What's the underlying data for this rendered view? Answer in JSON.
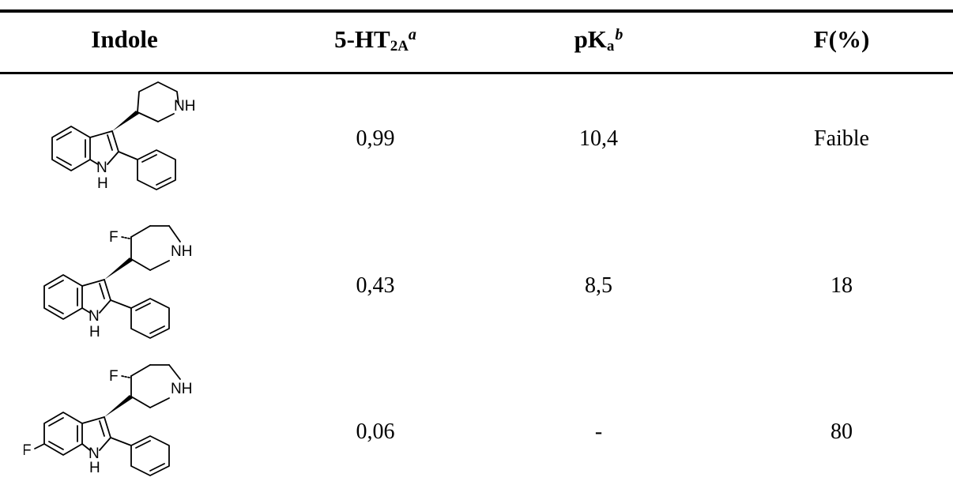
{
  "header": {
    "col1": "Indole",
    "col2_main": "5-HT",
    "col2_sub": "2A",
    "col2_sup": "a",
    "col3_main": "pK",
    "col3_sub": "a",
    "col3_sup": "b",
    "col4": "F(%)"
  },
  "rows": [
    {
      "structure_labels": {
        "amine": "NH",
        "indole_n": "N",
        "indole_h": "H"
      },
      "ht2a": "0,99",
      "pka": "10,4",
      "f": "Faible"
    },
    {
      "structure_labels": {
        "fluoro": "F",
        "amine": "NH",
        "indole_n": "N",
        "indole_h": "H"
      },
      "ht2a": "0,43",
      "pka": "8,5",
      "f": "18"
    },
    {
      "structure_labels": {
        "fluoro": "F",
        "aryl_fluoro": "F",
        "amine": "NH",
        "indole_n": "N",
        "indole_h": "H"
      },
      "ht2a": "0,06",
      "pka": "-",
      "f": "80"
    }
  ]
}
